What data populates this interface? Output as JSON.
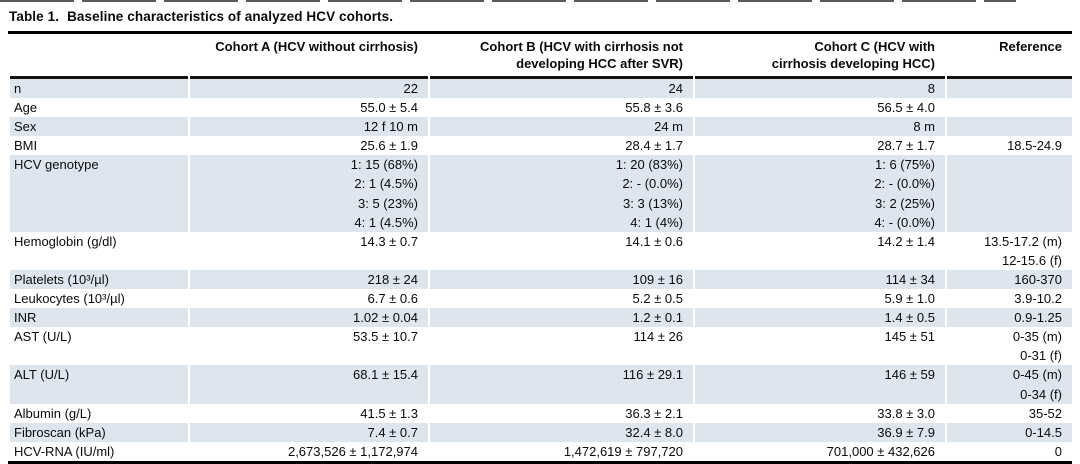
{
  "page": {
    "title_label": "Table 1.",
    "title_text": "Baseline characteristics of analyzed HCV cohorts."
  },
  "table": {
    "columns": {
      "label": "",
      "a": "Cohort A (HCV without cirrhosis)",
      "b": "Cohort B (HCV with cirrhosis not\ndeveloping HCC after SVR)",
      "c": "Cohort C (HCV with\ncirrhosis developing HCC)",
      "ref": "Reference"
    },
    "rows": [
      {
        "label": "n",
        "a": "22",
        "b": "24",
        "c": "8",
        "ref": ""
      },
      {
        "label": "Age",
        "a": "55.0 ± 5.4",
        "b": "55.8 ± 3.6",
        "c": "56.5 ± 4.0",
        "ref": ""
      },
      {
        "label": "Sex",
        "a": "12 f 10 m",
        "b": "24 m",
        "c": "8 m",
        "ref": ""
      },
      {
        "label": "BMI",
        "a": "25.6 ± 1.9",
        "b": "28.4 ± 1.7",
        "c": "28.7 ± 1.7",
        "ref": "18.5-24.9"
      },
      {
        "label": "HCV genotype",
        "a": "1: 15 (68%)\n2: 1 (4.5%)\n3: 5 (23%)\n4: 1 (4.5%)",
        "b": "1: 20 (83%)\n2: - (0.0%)\n3: 3 (13%)\n4: 1 (4%)",
        "c": "1: 6 (75%)\n2: - (0.0%)\n3: 2 (25%)\n4: - (0.0%)",
        "ref": ""
      },
      {
        "label": "Hemoglobin (g/dl)",
        "a": "14.3 ± 0.7",
        "b": "14.1 ± 0.6",
        "c": "14.2 ± 1.4",
        "ref": "13.5-17.2 (m)\n12-15.6 (f)"
      },
      {
        "label": "Platelets (10³/µl)",
        "a": "218 ± 24",
        "b": "109 ± 16",
        "c": "114 ± 34",
        "ref": "160-370"
      },
      {
        "label": "Leukocytes (10³/µl)",
        "a": "6.7 ± 0.6",
        "b": "5.2 ± 0.5",
        "c": "5.9 ± 1.0",
        "ref": "3.9-10.2"
      },
      {
        "label": "INR",
        "a": "1.02 ± 0.04",
        "b": "1.2 ± 0.1",
        "c": "1.4 ± 0.5",
        "ref": "0.9-1.25"
      },
      {
        "label": "AST (U/L)",
        "a": "53.5 ± 10.7",
        "b": "114 ± 26",
        "c": "145 ± 51",
        "ref": "0-35 (m)\n0-31 (f)"
      },
      {
        "label": "ALT (U/L)",
        "a": "68.1 ± 15.4",
        "b": "116 ± 29.1",
        "c": "146 ± 59",
        "ref": "0-45 (m)\n0-34 (f)"
      },
      {
        "label": "Albumin (g/L)",
        "a": "41.5 ± 1.3",
        "b": "36.3 ± 2.1",
        "c": "33.8 ± 3.0",
        "ref": "35-52"
      },
      {
        "label": "Fibroscan (kPa)",
        "a": "7.4 ± 0.7",
        "b": "32.4 ± 8.0",
        "c": "36.9 ± 7.9",
        "ref": "0-14.5"
      },
      {
        "label": "HCV-RNA (IU/ml)",
        "a": "2,673,526 ± 1,172,974",
        "b": "1,472,619 ± 797,720",
        "c": "701,000 ± 432,626",
        "ref": "0"
      }
    ]
  },
  "colors": {
    "stripe": "#dde6ee",
    "rule": "#000000"
  }
}
